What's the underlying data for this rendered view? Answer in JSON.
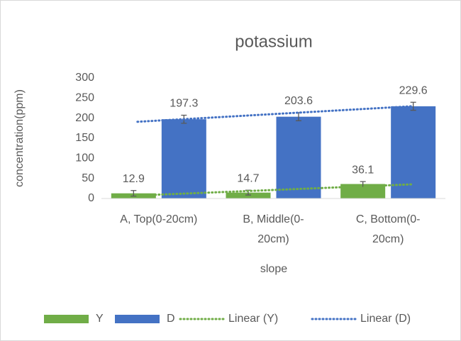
{
  "chart_data": {
    "type": "bar",
    "title": "potassium",
    "x_label": "slope",
    "y_label": "concentration(ppm)",
    "categories": [
      "A, Top(0-20cm)",
      "B, Middle(0-20cm)",
      "C, Bottom(0-20cm)"
    ],
    "series": [
      {
        "name": "Y",
        "color": "#70ad47",
        "values": [
          12.9,
          14.7,
          36.1
        ],
        "errors": [
          7,
          6,
          6
        ],
        "trendline": {
          "name": "Linear (Y)"
        }
      },
      {
        "name": "D",
        "color": "#4472c4",
        "values": [
          197.3,
          203.6,
          229.6
        ],
        "errors": [
          10,
          10,
          10
        ],
        "trendline": {
          "name": "Linear (D)"
        }
      }
    ],
    "ylim": [
      0,
      300
    ],
    "yticks": [
      0,
      50,
      100,
      150,
      200,
      250,
      300
    ],
    "grid": false,
    "legend": "bottom"
  }
}
